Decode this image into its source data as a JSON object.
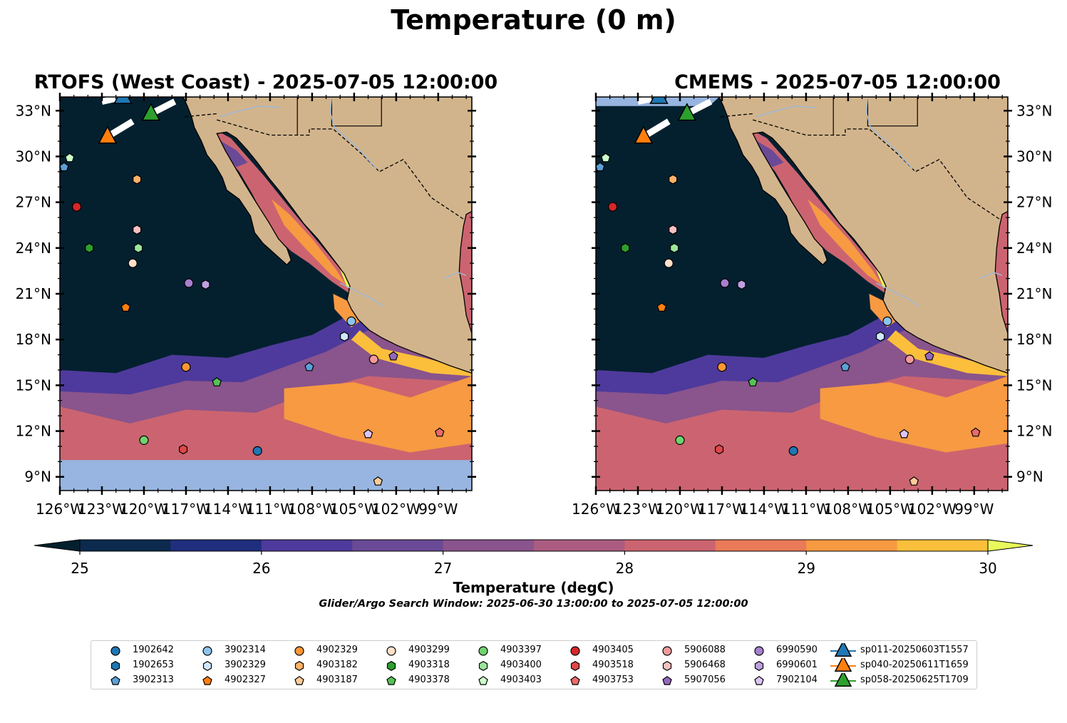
{
  "figure": {
    "suptitle": "Temperature (0 m)",
    "panels": [
      {
        "title": "RTOFS (West Coast) - 2025-07-05 12:00:00"
      },
      {
        "title": "CMEMS - 2025-07-05 12:00:00"
      }
    ],
    "lat_labels": [
      "33°N",
      "30°N",
      "27°N",
      "24°N",
      "21°N",
      "18°N",
      "15°N",
      "12°N",
      "9°N"
    ],
    "lon_labels": [
      "126°W",
      "123°W",
      "120°W",
      "117°W",
      "114°W",
      "111°W",
      "108°W",
      "105°W",
      "102°W",
      "99°W"
    ],
    "colorbar": {
      "label": "Temperature (degC)",
      "ticks": [
        "25",
        "26",
        "27",
        "28",
        "29",
        "30"
      ],
      "colors": [
        "#04202f",
        "#0b2a4e",
        "#202e7e",
        "#4e3a9c",
        "#6a4a96",
        "#8a548c",
        "#ab5c80",
        "#cb6470",
        "#ea7a58",
        "#f79a42",
        "#fbbf3c",
        "#e9f95a"
      ],
      "extend": "both"
    },
    "search_window": "Glider/Argo Search Window: 2025-06-30 13:00:00 to 2025-07-05 12:00:00",
    "colors": {
      "land": "#d2b48c",
      "nodata": "#97b5e0",
      "ocean_cold": "#04202f",
      "river": "#9fb8d6"
    }
  },
  "legend": [
    {
      "label": "1902642",
      "marker": "circle",
      "color": "#1f77b4"
    },
    {
      "label": "1902653",
      "marker": "hexagon",
      "color": "#1f77b4"
    },
    {
      "label": "3902313",
      "marker": "pentagon",
      "color": "#5aa0d8"
    },
    {
      "label": "3902314",
      "marker": "circle",
      "color": "#8cc4ee"
    },
    {
      "label": "3902329",
      "marker": "hexagon",
      "color": "#cfe8ff"
    },
    {
      "label": "4902327",
      "marker": "pentagon",
      "color": "#ff7f0e"
    },
    {
      "label": "4902329",
      "marker": "circle",
      "color": "#ff9733"
    },
    {
      "label": "4903182",
      "marker": "hexagon",
      "color": "#ffb266"
    },
    {
      "label": "4903187",
      "marker": "pentagon",
      "color": "#ffcc99"
    },
    {
      "label": "4903299",
      "marker": "circle",
      "color": "#ffe0c8"
    },
    {
      "label": "4903318",
      "marker": "hexagon",
      "color": "#2ca02c"
    },
    {
      "label": "4903378",
      "marker": "pentagon",
      "color": "#55c255"
    },
    {
      "label": "4903397",
      "marker": "circle",
      "color": "#6fd46f"
    },
    {
      "label": "4903400",
      "marker": "hexagon",
      "color": "#9be69b"
    },
    {
      "label": "4903403",
      "marker": "pentagon",
      "color": "#ccffcc"
    },
    {
      "label": "4903405",
      "marker": "circle",
      "color": "#d62728"
    },
    {
      "label": "4903518",
      "marker": "hexagon",
      "color": "#e04848"
    },
    {
      "label": "4903753",
      "marker": "pentagon",
      "color": "#ea6a6a"
    },
    {
      "label": "5906088",
      "marker": "circle",
      "color": "#f29a9a"
    },
    {
      "label": "5906468",
      "marker": "hexagon",
      "color": "#f7c0c0"
    },
    {
      "label": "5907056",
      "marker": "pentagon",
      "color": "#9467bd"
    },
    {
      "label": "6990590",
      "marker": "circle",
      "color": "#a77fcf"
    },
    {
      "label": "6990601",
      "marker": "hexagon",
      "color": "#bf9fe0"
    },
    {
      "label": "7902104",
      "marker": "pentagon",
      "color": "#dcc5f5"
    },
    {
      "label": "sp011-20250603T1557",
      "marker": "triangle",
      "color": "#1f77b4"
    },
    {
      "label": "sp040-20250611T1659",
      "marker": "triangle",
      "color": "#ff7f0e"
    },
    {
      "label": "sp058-20250625T1709",
      "marker": "triangle",
      "color": "#2ca02c"
    }
  ],
  "floats": [
    {
      "id": "3902313",
      "lon": -125.7,
      "lat": 29.3
    },
    {
      "id": "4903403",
      "lon": -125.3,
      "lat": 29.9
    },
    {
      "id": "4903405",
      "lon": -124.8,
      "lat": 26.7
    },
    {
      "id": "4903318",
      "lon": -123.9,
      "lat": 24.0
    },
    {
      "id": "4903182",
      "lon": -120.5,
      "lat": 28.5
    },
    {
      "id": "5906468",
      "lon": -120.5,
      "lat": 25.2
    },
    {
      "id": "4903400",
      "lon": -120.4,
      "lat": 24.0
    },
    {
      "id": "4903299",
      "lon": -120.8,
      "lat": 23.0
    },
    {
      "id": "6990590",
      "lon": -116.8,
      "lat": 21.7
    },
    {
      "id": "6990601",
      "lon": -115.6,
      "lat": 21.6
    },
    {
      "id": "4902327",
      "lon": -121.3,
      "lat": 20.1
    },
    {
      "id": "4902329",
      "lon": -117.0,
      "lat": 16.2
    },
    {
      "id": "4903378",
      "lon": -114.8,
      "lat": 15.2
    },
    {
      "id": "4903397",
      "lon": -120.0,
      "lat": 11.4
    },
    {
      "id": "4903518",
      "lon": -117.2,
      "lat": 10.8
    },
    {
      "id": "1902642",
      "lon": -111.9,
      "lat": 10.7
    },
    {
      "id": "3902313",
      "lon": -108.2,
      "lat": 16.2
    },
    {
      "id": "3902314",
      "lon": -105.2,
      "lat": 19.2
    },
    {
      "id": "3902329",
      "lon": -105.7,
      "lat": 18.2
    },
    {
      "id": "5906088",
      "lon": -103.6,
      "lat": 16.7
    },
    {
      "id": "5907056",
      "lon": -102.2,
      "lat": 16.9
    },
    {
      "id": "7902104",
      "lon": -104.0,
      "lat": 11.8
    },
    {
      "id": "4903187",
      "lon": -103.3,
      "lat": 8.7
    },
    {
      "id": "4903753",
      "lon": -98.9,
      "lat": 11.9
    }
  ],
  "gliders": [
    {
      "id": "sp011-20250603T1557",
      "lon": -121.5,
      "lat": 33.9,
      "track": [
        [
          -121.5,
          33.9
        ],
        [
          -123.0,
          33.6
        ]
      ]
    },
    {
      "id": "sp040-20250611T1659",
      "lon": -122.6,
      "lat": 31.3,
      "track": [
        [
          -122.6,
          31.3
        ],
        [
          -120.8,
          32.3
        ]
      ]
    },
    {
      "id": "sp058-20250625T1709",
      "lon": -119.5,
      "lat": 32.8,
      "track": [
        [
          -119.5,
          32.8
        ],
        [
          -117.8,
          33.6
        ]
      ]
    }
  ]
}
